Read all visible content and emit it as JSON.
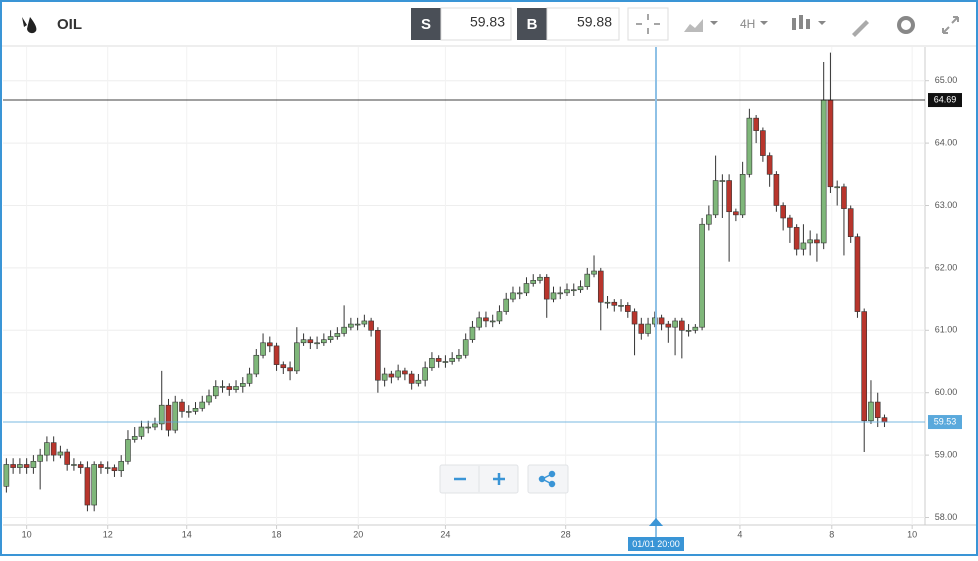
{
  "toolbar": {
    "symbol": "OIL",
    "sell_label": "S",
    "sell_price": "59.83",
    "buy_label": "B",
    "buy_price": "59.88",
    "timeframe": "4H"
  },
  "crosshair_label": "01/01 20:00",
  "chart_data": {
    "type": "candlestick",
    "up_color": "#7fb77a",
    "down_color": "#b8352c",
    "ylim": [
      57.88,
      65.54
    ],
    "yticks": [
      {
        "value": 58,
        "label": "58.00"
      },
      {
        "value": 59,
        "label": "59.00"
      },
      {
        "value": 60,
        "label": "60.00"
      },
      {
        "value": 61,
        "label": "61.00"
      },
      {
        "value": 62,
        "label": "62.00"
      },
      {
        "value": 63,
        "label": "63.00"
      },
      {
        "value": 64,
        "label": "64.00"
      },
      {
        "value": 65,
        "label": "65.00"
      }
    ],
    "xlim": [
      -0.5,
      136
    ],
    "xticks": [
      {
        "value": 3,
        "label": "10"
      },
      {
        "value": 15,
        "label": "12"
      },
      {
        "value": 26.7,
        "label": "14"
      },
      {
        "value": 40,
        "label": "18"
      },
      {
        "value": 52.1,
        "label": "20"
      },
      {
        "value": 65,
        "label": "24"
      },
      {
        "value": 82.8,
        "label": "28"
      },
      {
        "value": 108.6,
        "label": "4"
      },
      {
        "value": 122.2,
        "label": "8"
      },
      {
        "value": 134.1,
        "label": "10"
      }
    ],
    "grid": true,
    "price_lines": [
      {
        "value": 64.69,
        "color": "#111111"
      },
      {
        "value": 59.53,
        "color": "#5aa9dc"
      }
    ],
    "ohlc": [
      [
        58.5,
        58.95,
        58.4,
        58.85
      ],
      [
        58.85,
        58.95,
        58.7,
        58.8
      ],
      [
        58.8,
        58.95,
        58.7,
        58.85
      ],
      [
        58.85,
        58.95,
        58.7,
        58.8
      ],
      [
        58.8,
        59.0,
        58.7,
        58.9
      ],
      [
        58.9,
        59.1,
        58.45,
        59.0
      ],
      [
        59.0,
        59.3,
        58.9,
        59.2
      ],
      [
        59.2,
        59.3,
        58.9,
        59.0
      ],
      [
        59.0,
        59.15,
        58.95,
        59.05
      ],
      [
        59.05,
        59.1,
        58.75,
        58.85
      ],
      [
        58.85,
        58.95,
        58.75,
        58.85
      ],
      [
        58.85,
        58.9,
        58.7,
        58.8
      ],
      [
        58.8,
        58.9,
        58.1,
        58.2
      ],
      [
        58.2,
        58.9,
        58.1,
        58.85
      ],
      [
        58.85,
        58.9,
        58.7,
        58.8
      ],
      [
        58.8,
        58.9,
        58.7,
        58.8
      ],
      [
        58.8,
        58.85,
        58.65,
        58.75
      ],
      [
        58.75,
        59.0,
        58.65,
        58.9
      ],
      [
        58.9,
        59.4,
        58.85,
        59.25
      ],
      [
        59.25,
        59.45,
        59.2,
        59.3
      ],
      [
        59.3,
        59.55,
        59.25,
        59.45
      ],
      [
        59.45,
        59.55,
        59.35,
        59.45
      ],
      [
        59.45,
        59.6,
        59.4,
        59.5
      ],
      [
        59.5,
        60.35,
        59.4,
        59.8
      ],
      [
        59.8,
        59.9,
        59.3,
        59.4
      ],
      [
        59.4,
        59.95,
        59.35,
        59.85
      ],
      [
        59.85,
        59.9,
        59.6,
        59.7
      ],
      [
        59.7,
        59.8,
        59.6,
        59.7
      ],
      [
        59.7,
        59.85,
        59.65,
        59.75
      ],
      [
        59.75,
        59.95,
        59.7,
        59.85
      ],
      [
        59.85,
        60.05,
        59.8,
        59.95
      ],
      [
        59.95,
        60.2,
        59.9,
        60.1
      ],
      [
        60.1,
        60.2,
        60.0,
        60.1
      ],
      [
        60.1,
        60.15,
        59.95,
        60.05
      ],
      [
        60.05,
        60.2,
        60.0,
        60.1
      ],
      [
        60.1,
        60.25,
        60.0,
        60.15
      ],
      [
        60.15,
        60.4,
        60.1,
        60.3
      ],
      [
        60.3,
        60.7,
        60.25,
        60.6
      ],
      [
        60.6,
        60.95,
        60.55,
        60.8
      ],
      [
        60.8,
        60.9,
        60.65,
        60.75
      ],
      [
        60.75,
        60.8,
        60.35,
        60.45
      ],
      [
        60.45,
        60.5,
        60.3,
        60.4
      ],
      [
        60.4,
        60.5,
        60.2,
        60.35
      ],
      [
        60.35,
        61.05,
        60.3,
        60.8
      ],
      [
        60.8,
        60.95,
        60.75,
        60.85
      ],
      [
        60.85,
        60.9,
        60.7,
        60.8
      ],
      [
        60.8,
        60.9,
        60.7,
        60.8
      ],
      [
        60.8,
        60.95,
        60.75,
        60.85
      ],
      [
        60.85,
        61.0,
        60.8,
        60.9
      ],
      [
        60.9,
        61.05,
        60.85,
        60.95
      ],
      [
        60.95,
        61.4,
        60.9,
        61.05
      ],
      [
        61.05,
        61.2,
        61.0,
        61.1
      ],
      [
        61.1,
        61.2,
        61.0,
        61.1
      ],
      [
        61.1,
        61.25,
        61.05,
        61.15
      ],
      [
        61.15,
        61.2,
        60.9,
        61.0
      ],
      [
        61.0,
        61.05,
        60.0,
        60.2
      ],
      [
        60.2,
        60.4,
        60.1,
        60.3
      ],
      [
        60.3,
        60.35,
        60.15,
        60.25
      ],
      [
        60.25,
        60.45,
        60.2,
        60.35
      ],
      [
        60.35,
        60.4,
        60.2,
        60.3
      ],
      [
        60.3,
        60.35,
        60.05,
        60.15
      ],
      [
        60.15,
        60.3,
        60.1,
        60.2
      ],
      [
        60.2,
        60.5,
        60.1,
        60.4
      ],
      [
        60.4,
        60.65,
        60.35,
        60.55
      ],
      [
        60.55,
        60.6,
        60.4,
        60.5
      ],
      [
        60.5,
        60.6,
        60.4,
        60.5
      ],
      [
        60.5,
        60.65,
        60.45,
        60.55
      ],
      [
        60.55,
        60.7,
        60.5,
        60.6
      ],
      [
        60.6,
        60.95,
        60.55,
        60.85
      ],
      [
        60.85,
        61.15,
        60.8,
        61.05
      ],
      [
        61.05,
        61.3,
        61.0,
        61.2
      ],
      [
        61.2,
        61.3,
        61.05,
        61.15
      ],
      [
        61.15,
        61.25,
        61.05,
        61.15
      ],
      [
        61.15,
        61.4,
        61.1,
        61.3
      ],
      [
        61.3,
        61.6,
        61.25,
        61.5
      ],
      [
        61.5,
        61.7,
        61.45,
        61.6
      ],
      [
        61.6,
        61.7,
        61.5,
        61.6
      ],
      [
        61.6,
        61.85,
        61.55,
        61.75
      ],
      [
        61.75,
        61.9,
        61.7,
        61.8
      ],
      [
        61.8,
        61.9,
        61.75,
        61.85
      ],
      [
        61.85,
        61.9,
        61.2,
        61.5
      ],
      [
        61.5,
        61.7,
        61.45,
        61.6
      ],
      [
        61.6,
        61.7,
        61.5,
        61.6
      ],
      [
        61.6,
        61.75,
        61.55,
        61.65
      ],
      [
        61.65,
        61.75,
        61.55,
        61.65
      ],
      [
        61.65,
        61.8,
        61.6,
        61.7
      ],
      [
        61.7,
        62.0,
        61.65,
        61.9
      ],
      [
        61.9,
        62.2,
        61.85,
        61.95
      ],
      [
        61.95,
        62.0,
        61.0,
        61.45
      ],
      [
        61.45,
        61.55,
        61.35,
        61.45
      ],
      [
        61.45,
        61.5,
        61.3,
        61.4
      ],
      [
        61.4,
        61.5,
        61.3,
        61.4
      ],
      [
        61.4,
        61.45,
        61.2,
        61.3
      ],
      [
        61.3,
        61.35,
        60.6,
        61.1
      ],
      [
        61.1,
        61.2,
        60.85,
        60.95
      ],
      [
        60.95,
        61.2,
        60.9,
        61.1
      ],
      [
        61.1,
        61.3,
        61.05,
        61.2
      ],
      [
        61.2,
        61.25,
        61.0,
        61.1
      ],
      [
        61.1,
        61.15,
        60.8,
        61.05
      ],
      [
        61.05,
        61.2,
        60.6,
        61.15
      ],
      [
        61.15,
        61.2,
        60.55,
        61.0
      ],
      [
        61.0,
        61.1,
        60.9,
        61.0
      ],
      [
        61.0,
        61.1,
        60.95,
        61.05
      ],
      [
        61.05,
        62.8,
        61.0,
        62.7
      ],
      [
        62.7,
        63.0,
        62.6,
        62.85
      ],
      [
        62.85,
        63.8,
        62.8,
        63.4
      ],
      [
        63.4,
        63.5,
        62.8,
        63.4
      ],
      [
        63.4,
        63.5,
        62.1,
        62.9
      ],
      [
        62.9,
        62.95,
        62.75,
        62.85
      ],
      [
        62.85,
        63.7,
        62.8,
        63.5
      ],
      [
        63.5,
        64.55,
        63.45,
        64.4
      ],
      [
        64.4,
        64.45,
        64.0,
        64.2
      ],
      [
        64.2,
        64.25,
        63.7,
        63.8
      ],
      [
        63.8,
        63.85,
        63.3,
        63.5
      ],
      [
        63.5,
        63.55,
        62.9,
        63.0
      ],
      [
        63.0,
        63.05,
        62.6,
        62.8
      ],
      [
        62.8,
        62.85,
        62.4,
        62.65
      ],
      [
        62.65,
        62.7,
        62.2,
        62.3
      ],
      [
        62.3,
        62.7,
        62.2,
        62.4
      ],
      [
        62.4,
        62.6,
        62.2,
        62.45
      ],
      [
        62.45,
        62.55,
        62.1,
        62.4
      ],
      [
        62.4,
        65.3,
        62.3,
        64.69
      ],
      [
        64.69,
        65.45,
        63.2,
        63.3
      ],
      [
        63.3,
        63.4,
        63.0,
        63.3
      ],
      [
        63.3,
        63.35,
        62.2,
        62.95
      ],
      [
        62.95,
        63.0,
        62.4,
        62.5
      ],
      [
        62.5,
        62.55,
        61.2,
        61.3
      ],
      [
        61.3,
        61.35,
        59.05,
        59.55
      ],
      [
        59.55,
        60.2,
        59.5,
        59.85
      ],
      [
        59.85,
        60.0,
        59.45,
        59.6
      ],
      [
        59.6,
        59.65,
        59.45,
        59.53
      ]
    ]
  }
}
